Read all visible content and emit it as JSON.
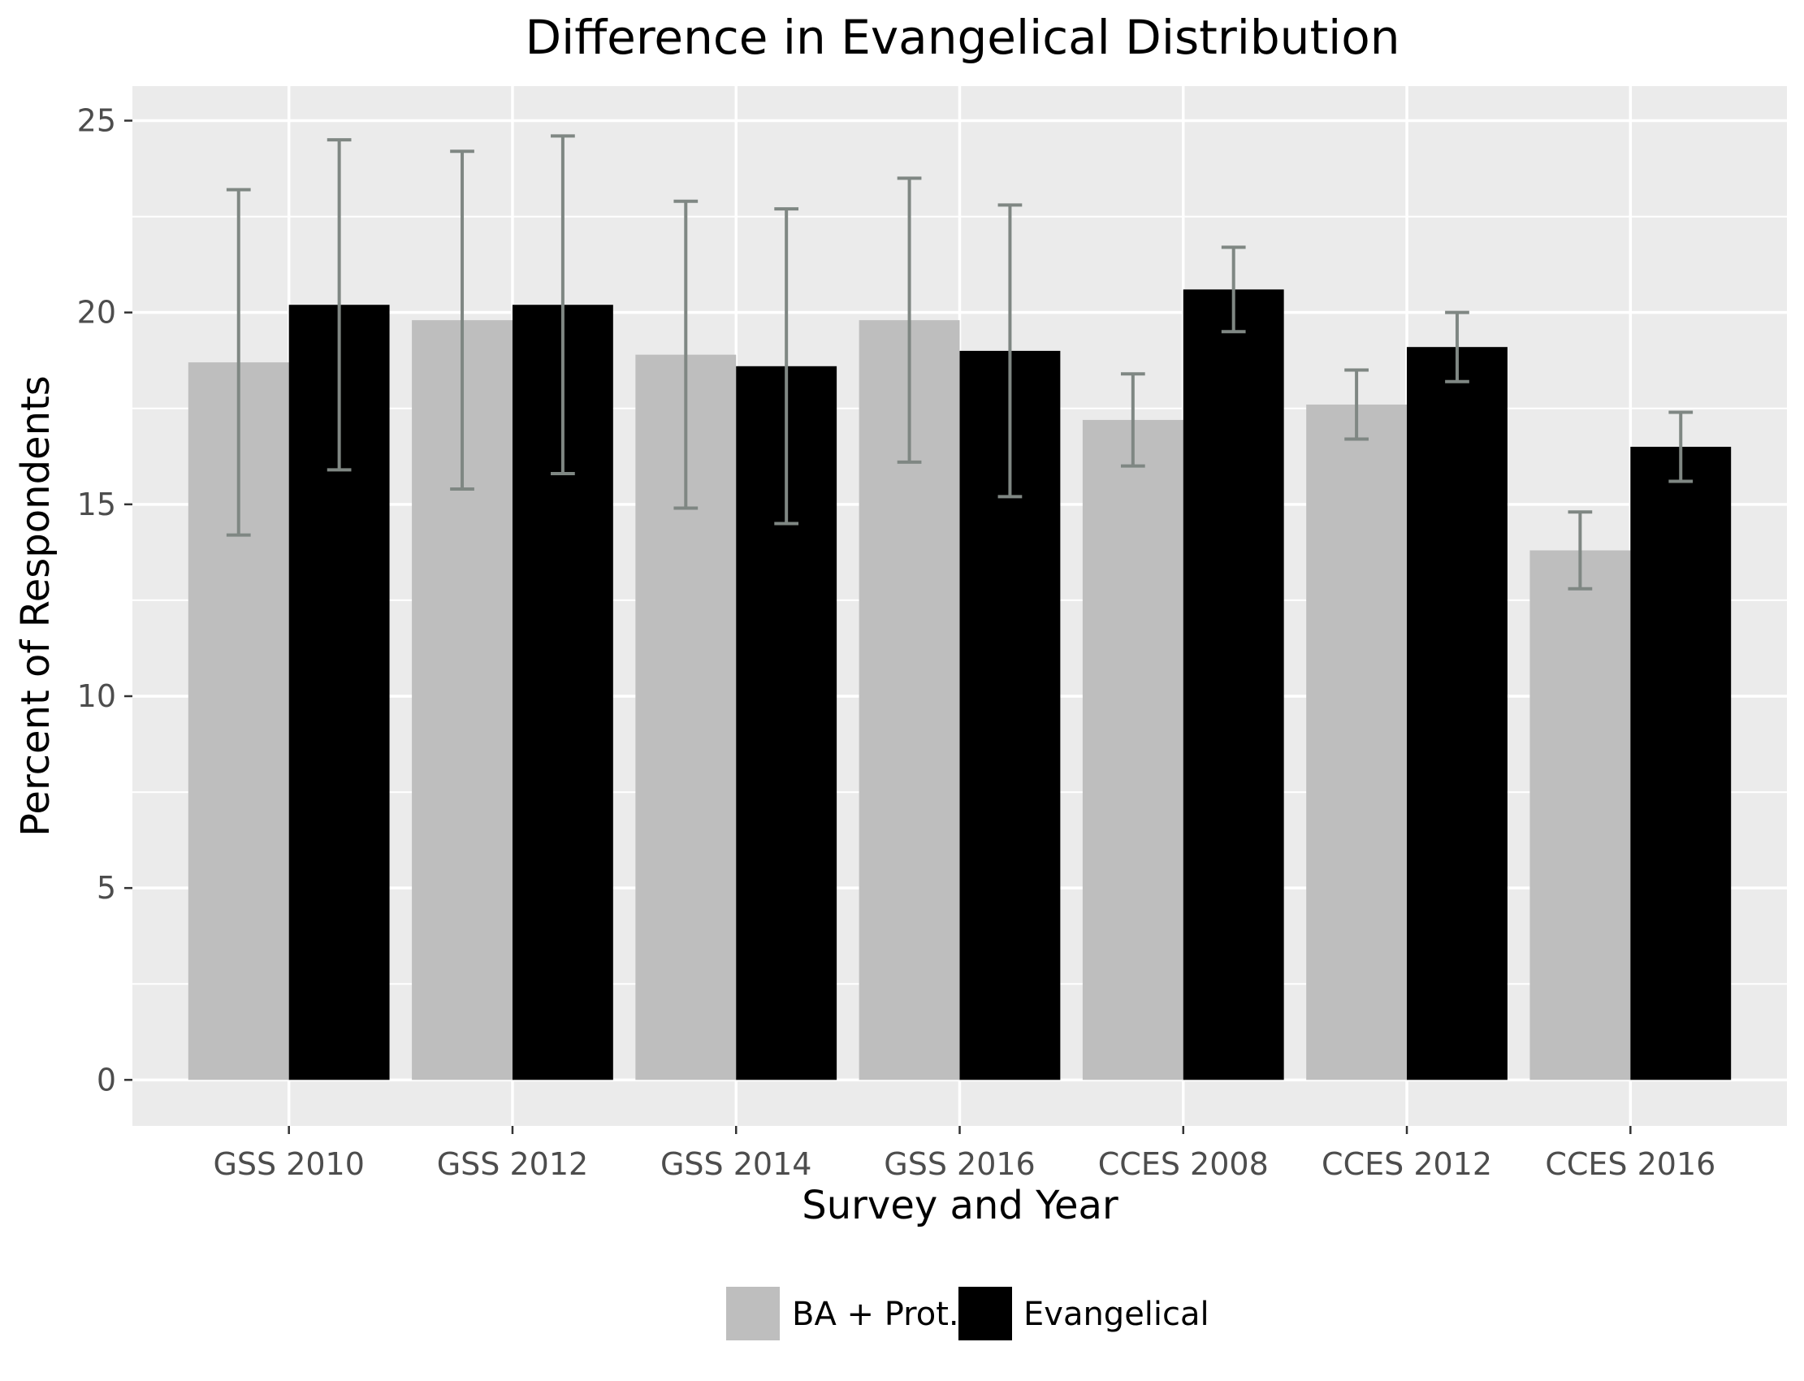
{
  "chart_data": {
    "type": "bar",
    "title": "Difference in Evangelical Distribution",
    "xlabel": "Survey and Year",
    "ylabel": "Percent of Respondents",
    "categories": [
      "GSS 2010",
      "GSS 2012",
      "GSS 2014",
      "GSS 2016",
      "CCES 2008",
      "CCES 2012",
      "CCES 2016"
    ],
    "series": [
      {
        "name": "BA + Prot.",
        "color": "#bebebe",
        "values": [
          18.7,
          19.8,
          18.9,
          19.8,
          17.2,
          17.6,
          13.8
        ],
        "error_low": [
          14.2,
          15.4,
          14.9,
          16.1,
          16.0,
          16.7,
          12.8
        ],
        "error_high": [
          23.2,
          24.2,
          22.9,
          23.5,
          18.4,
          18.5,
          14.8
        ]
      },
      {
        "name": "Evangelical",
        "color": "#000000",
        "values": [
          20.2,
          20.2,
          18.6,
          19.0,
          20.6,
          19.1,
          16.5
        ],
        "error_low": [
          15.9,
          15.8,
          14.5,
          15.2,
          19.5,
          18.2,
          15.6
        ],
        "error_high": [
          24.5,
          24.6,
          22.7,
          22.8,
          21.7,
          20.0,
          17.4
        ]
      }
    ],
    "ylim": [
      -1.2,
      25.9
    ],
    "yticks": [
      0,
      5,
      10,
      15,
      20,
      25
    ],
    "ytick_labels": [
      "0",
      "5",
      "10",
      "15",
      "20",
      "25"
    ],
    "error_bar_color": "#7f8783",
    "panel_background": "#ebebeb",
    "grid": true,
    "legend_position": "bottom"
  }
}
